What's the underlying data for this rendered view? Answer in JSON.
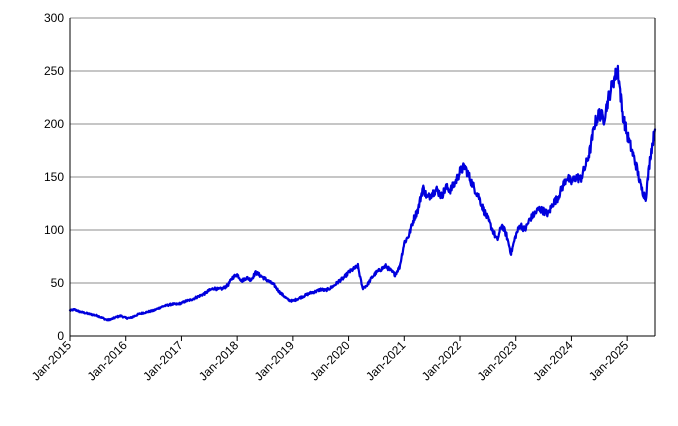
{
  "chart_data": {
    "type": "line",
    "title": "",
    "xlabel": "",
    "ylabel": "",
    "ylim": [
      0,
      300
    ],
    "y_ticks": [
      "0",
      "50",
      "100",
      "150",
      "200",
      "250",
      "300"
    ],
    "x_ticks": [
      "Jan-2015",
      "Jan-2016",
      "Jan-2017",
      "Jan-2018",
      "Jan-2019",
      "Jan-2020",
      "Jan-2021",
      "Jan-2022",
      "Jan-2023",
      "Jan-2024",
      "Jan-2025"
    ],
    "xlim": [
      "2015-01",
      "2025-07"
    ],
    "grid": "horizontal",
    "legend": "none",
    "series": [
      {
        "color": "#0000dd",
        "points": [
          [
            "2015-01",
            24
          ],
          [
            "2015-02",
            25
          ],
          [
            "2015-03",
            23
          ],
          [
            "2015-04",
            22
          ],
          [
            "2015-05",
            21
          ],
          [
            "2015-06",
            20
          ],
          [
            "2015-07",
            19
          ],
          [
            "2015-08",
            17
          ],
          [
            "2015-09",
            15
          ],
          [
            "2015-10",
            16
          ],
          [
            "2015-11",
            18
          ],
          [
            "2015-12",
            19
          ],
          [
            "2016-01",
            17
          ],
          [
            "2016-02",
            17
          ],
          [
            "2016-03",
            19
          ],
          [
            "2016-04",
            21
          ],
          [
            "2016-05",
            22
          ],
          [
            "2016-06",
            23
          ],
          [
            "2016-07",
            24
          ],
          [
            "2016-08",
            26
          ],
          [
            "2016-09",
            28
          ],
          [
            "2016-10",
            29
          ],
          [
            "2016-11",
            30
          ],
          [
            "2016-12",
            30
          ],
          [
            "2017-01",
            31
          ],
          [
            "2017-02",
            33
          ],
          [
            "2017-03",
            34
          ],
          [
            "2017-04",
            36
          ],
          [
            "2017-05",
            38
          ],
          [
            "2017-06",
            40
          ],
          [
            "2017-07",
            43
          ],
          [
            "2017-08",
            45
          ],
          [
            "2017-09",
            44
          ],
          [
            "2017-10",
            45
          ],
          [
            "2017-11",
            48
          ],
          [
            "2017-12",
            55
          ],
          [
            "2018-01",
            58
          ],
          [
            "2018-02",
            52
          ],
          [
            "2018-03",
            55
          ],
          [
            "2018-04",
            53
          ],
          [
            "2018-05",
            60
          ],
          [
            "2018-06",
            57
          ],
          [
            "2018-07",
            54
          ],
          [
            "2018-08",
            51
          ],
          [
            "2018-09",
            48
          ],
          [
            "2018-10",
            42
          ],
          [
            "2018-11",
            38
          ],
          [
            "2018-12",
            34
          ],
          [
            "2019-01",
            33
          ],
          [
            "2019-02",
            35
          ],
          [
            "2019-03",
            37
          ],
          [
            "2019-04",
            39
          ],
          [
            "2019-05",
            41
          ],
          [
            "2019-06",
            42
          ],
          [
            "2019-07",
            44
          ],
          [
            "2019-08",
            43
          ],
          [
            "2019-09",
            45
          ],
          [
            "2019-10",
            48
          ],
          [
            "2019-11",
            52
          ],
          [
            "2019-12",
            55
          ],
          [
            "2020-01",
            60
          ],
          [
            "2020-02",
            63
          ],
          [
            "2020-03",
            66
          ],
          [
            "2020-04",
            45
          ],
          [
            "2020-05",
            48
          ],
          [
            "2020-06",
            55
          ],
          [
            "2020-07",
            60
          ],
          [
            "2020-08",
            63
          ],
          [
            "2020-09",
            66
          ],
          [
            "2020-10",
            62
          ],
          [
            "2020-11",
            58
          ],
          [
            "2020-12",
            65
          ],
          [
            "2021-01",
            88
          ],
          [
            "2021-02",
            95
          ],
          [
            "2021-03",
            110
          ],
          [
            "2021-04",
            120
          ],
          [
            "2021-05",
            140
          ],
          [
            "2021-06",
            130
          ],
          [
            "2021-07",
            135
          ],
          [
            "2021-08",
            138
          ],
          [
            "2021-09",
            132
          ],
          [
            "2021-10",
            140
          ],
          [
            "2021-11",
            138
          ],
          [
            "2021-12",
            145
          ],
          [
            "2022-01",
            155
          ],
          [
            "2022-02",
            160
          ],
          [
            "2022-03",
            150
          ],
          [
            "2022-04",
            140
          ],
          [
            "2022-05",
            132
          ],
          [
            "2022-06",
            120
          ],
          [
            "2022-07",
            110
          ],
          [
            "2022-08",
            100
          ],
          [
            "2022-09",
            90
          ],
          [
            "2022-10",
            105
          ],
          [
            "2022-11",
            95
          ],
          [
            "2022-12",
            78
          ],
          [
            "2023-01",
            95
          ],
          [
            "2023-02",
            105
          ],
          [
            "2023-03",
            100
          ],
          [
            "2023-04",
            110
          ],
          [
            "2023-05",
            115
          ],
          [
            "2023-06",
            120
          ],
          [
            "2023-07",
            118
          ],
          [
            "2023-08",
            115
          ],
          [
            "2023-09",
            125
          ],
          [
            "2023-10",
            130
          ],
          [
            "2023-11",
            140
          ],
          [
            "2023-12",
            150
          ],
          [
            "2024-01",
            145
          ],
          [
            "2024-02",
            150
          ],
          [
            "2024-03",
            148
          ],
          [
            "2024-04",
            160
          ],
          [
            "2024-05",
            175
          ],
          [
            "2024-06",
            200
          ],
          [
            "2024-07",
            210
          ],
          [
            "2024-08",
            205
          ],
          [
            "2024-09",
            225
          ],
          [
            "2024-10",
            240
          ],
          [
            "2024-11",
            252
          ],
          [
            "2024-12",
            210
          ],
          [
            "2025-01",
            190
          ],
          [
            "2025-02",
            175
          ],
          [
            "2025-03",
            160
          ],
          [
            "2025-04",
            140
          ],
          [
            "2025-05",
            130
          ],
          [
            "2025-06",
            170
          ],
          [
            "2025-07",
            195
          ]
        ]
      }
    ]
  }
}
